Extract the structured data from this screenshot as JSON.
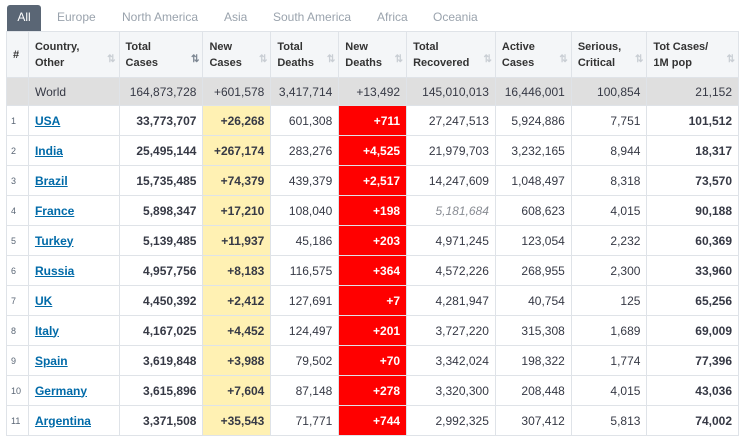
{
  "tabs": [
    {
      "label": "All",
      "active": true
    },
    {
      "label": "Europe"
    },
    {
      "label": "North America"
    },
    {
      "label": "Asia"
    },
    {
      "label": "South America"
    },
    {
      "label": "Africa"
    },
    {
      "label": "Oceania"
    }
  ],
  "columns": {
    "num": "#",
    "country": [
      "Country,",
      "Other"
    ],
    "total_cases": [
      "Total",
      "Cases"
    ],
    "new_cases": [
      "New",
      "Cases"
    ],
    "total_deaths": [
      "Total",
      "Deaths"
    ],
    "new_deaths": [
      "New",
      "Deaths"
    ],
    "total_recovered": [
      "Total",
      "Recovered"
    ],
    "active_cases": [
      "Active",
      "Cases"
    ],
    "serious": [
      "Serious,",
      "Critical"
    ],
    "per_million": [
      "Tot Cases/",
      "1M pop"
    ]
  },
  "world": {
    "country": "World",
    "total_cases": "164,873,728",
    "new_cases": "+601,578",
    "total_deaths": "3,417,714",
    "new_deaths": "+13,492",
    "total_recovered": "145,010,013",
    "active_cases": "16,446,001",
    "serious": "100,854",
    "per_million": "21,152"
  },
  "rows": [
    {
      "num": "1",
      "country": "USA",
      "total_cases": "33,773,707",
      "new_cases": "+26,268",
      "total_deaths": "601,308",
      "new_deaths": "+711",
      "total_recovered": "27,247,513",
      "active_cases": "5,924,886",
      "serious": "7,751",
      "per_million": "101,512"
    },
    {
      "num": "2",
      "country": "India",
      "total_cases": "25,495,144",
      "new_cases": "+267,174",
      "total_deaths": "283,276",
      "new_deaths": "+4,525",
      "total_recovered": "21,979,703",
      "active_cases": "3,232,165",
      "serious": "8,944",
      "per_million": "18,317"
    },
    {
      "num": "3",
      "country": "Brazil",
      "total_cases": "15,735,485",
      "new_cases": "+74,379",
      "total_deaths": "439,379",
      "new_deaths": "+2,517",
      "total_recovered": "14,247,609",
      "active_cases": "1,048,497",
      "serious": "8,318",
      "per_million": "73,570"
    },
    {
      "num": "4",
      "country": "France",
      "total_cases": "5,898,347",
      "new_cases": "+17,210",
      "total_deaths": "108,040",
      "new_deaths": "+198",
      "total_recovered": "5,181,684",
      "recovered_estimated": true,
      "active_cases": "608,623",
      "serious": "4,015",
      "per_million": "90,188"
    },
    {
      "num": "5",
      "country": "Turkey",
      "total_cases": "5,139,485",
      "new_cases": "+11,937",
      "total_deaths": "45,186",
      "new_deaths": "+203",
      "total_recovered": "4,971,245",
      "active_cases": "123,054",
      "serious": "2,232",
      "per_million": "60,369"
    },
    {
      "num": "6",
      "country": "Russia",
      "total_cases": "4,957,756",
      "new_cases": "+8,183",
      "total_deaths": "116,575",
      "new_deaths": "+364",
      "total_recovered": "4,572,226",
      "active_cases": "268,955",
      "serious": "2,300",
      "per_million": "33,960"
    },
    {
      "num": "7",
      "country": "UK",
      "total_cases": "4,450,392",
      "new_cases": "+2,412",
      "total_deaths": "127,691",
      "new_deaths": "+7",
      "total_recovered": "4,281,947",
      "active_cases": "40,754",
      "serious": "125",
      "per_million": "65,256"
    },
    {
      "num": "8",
      "country": "Italy",
      "total_cases": "4,167,025",
      "new_cases": "+4,452",
      "total_deaths": "124,497",
      "new_deaths": "+201",
      "total_recovered": "3,727,220",
      "active_cases": "315,308",
      "serious": "1,689",
      "per_million": "69,009"
    },
    {
      "num": "9",
      "country": "Spain",
      "total_cases": "3,619,848",
      "new_cases": "+3,988",
      "total_deaths": "79,502",
      "new_deaths": "+70",
      "total_recovered": "3,342,024",
      "active_cases": "198,322",
      "serious": "1,774",
      "per_million": "77,396"
    },
    {
      "num": "10",
      "country": "Germany",
      "total_cases": "3,615,896",
      "new_cases": "+7,604",
      "total_deaths": "87,148",
      "new_deaths": "+278",
      "total_recovered": "3,320,300",
      "active_cases": "208,448",
      "serious": "4,015",
      "per_million": "43,036"
    },
    {
      "num": "11",
      "country": "Argentina",
      "total_cases": "3,371,508",
      "new_cases": "+35,543",
      "total_deaths": "71,771",
      "new_deaths": "+744",
      "total_recovered": "2,992,325",
      "active_cases": "307,412",
      "serious": "5,813",
      "per_million": "74,002"
    }
  ],
  "colors": {
    "tab_active_bg": "#5a6675",
    "new_cases_bg": "#fff1b3",
    "new_deaths_bg": "#ff0000",
    "world_row_bg": "#dfdfdf",
    "country_link": "#006aa8"
  }
}
